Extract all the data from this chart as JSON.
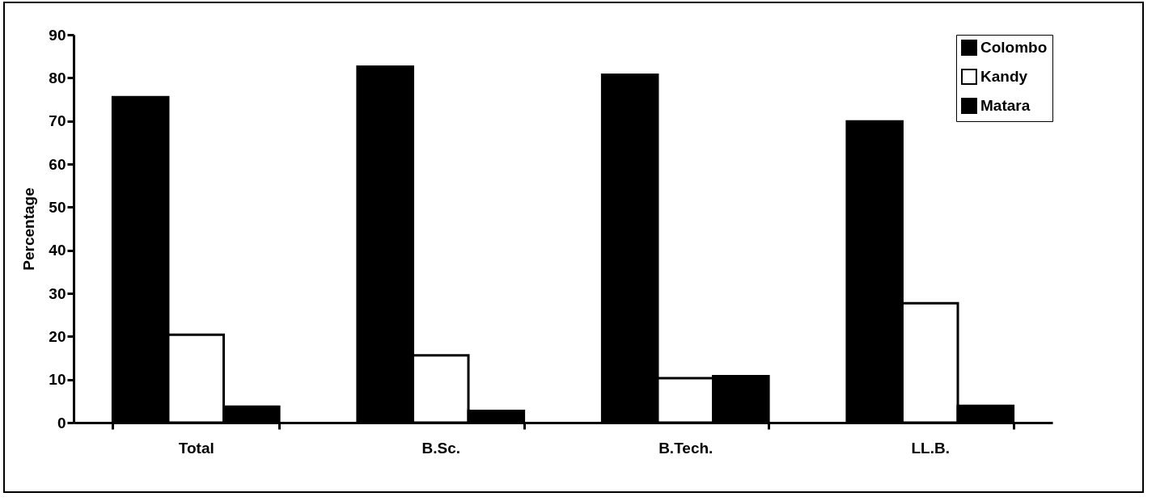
{
  "chart_data": {
    "type": "bar",
    "ylabel": "Percentage",
    "categories": [
      "Total",
      "B.Sc.",
      "B.Tech.",
      "LL.B."
    ],
    "series": [
      {
        "name": "Colombo",
        "color": "#000000",
        "values": [
          75.5,
          82.6,
          80.7,
          69.9
        ]
      },
      {
        "name": "Kandy",
        "color": "#ffffff",
        "values": [
          20.4,
          15.6,
          10.3,
          27.7
        ]
      },
      {
        "name": "Matara",
        "color": "#000000",
        "values": [
          3.7,
          2.7,
          10.8,
          3.9
        ]
      }
    ],
    "ylim": [
      0,
      90
    ],
    "yticks": [
      0,
      10,
      20,
      30,
      40,
      50,
      60,
      70,
      80,
      90
    ],
    "grid": false,
    "legend": "top right"
  }
}
